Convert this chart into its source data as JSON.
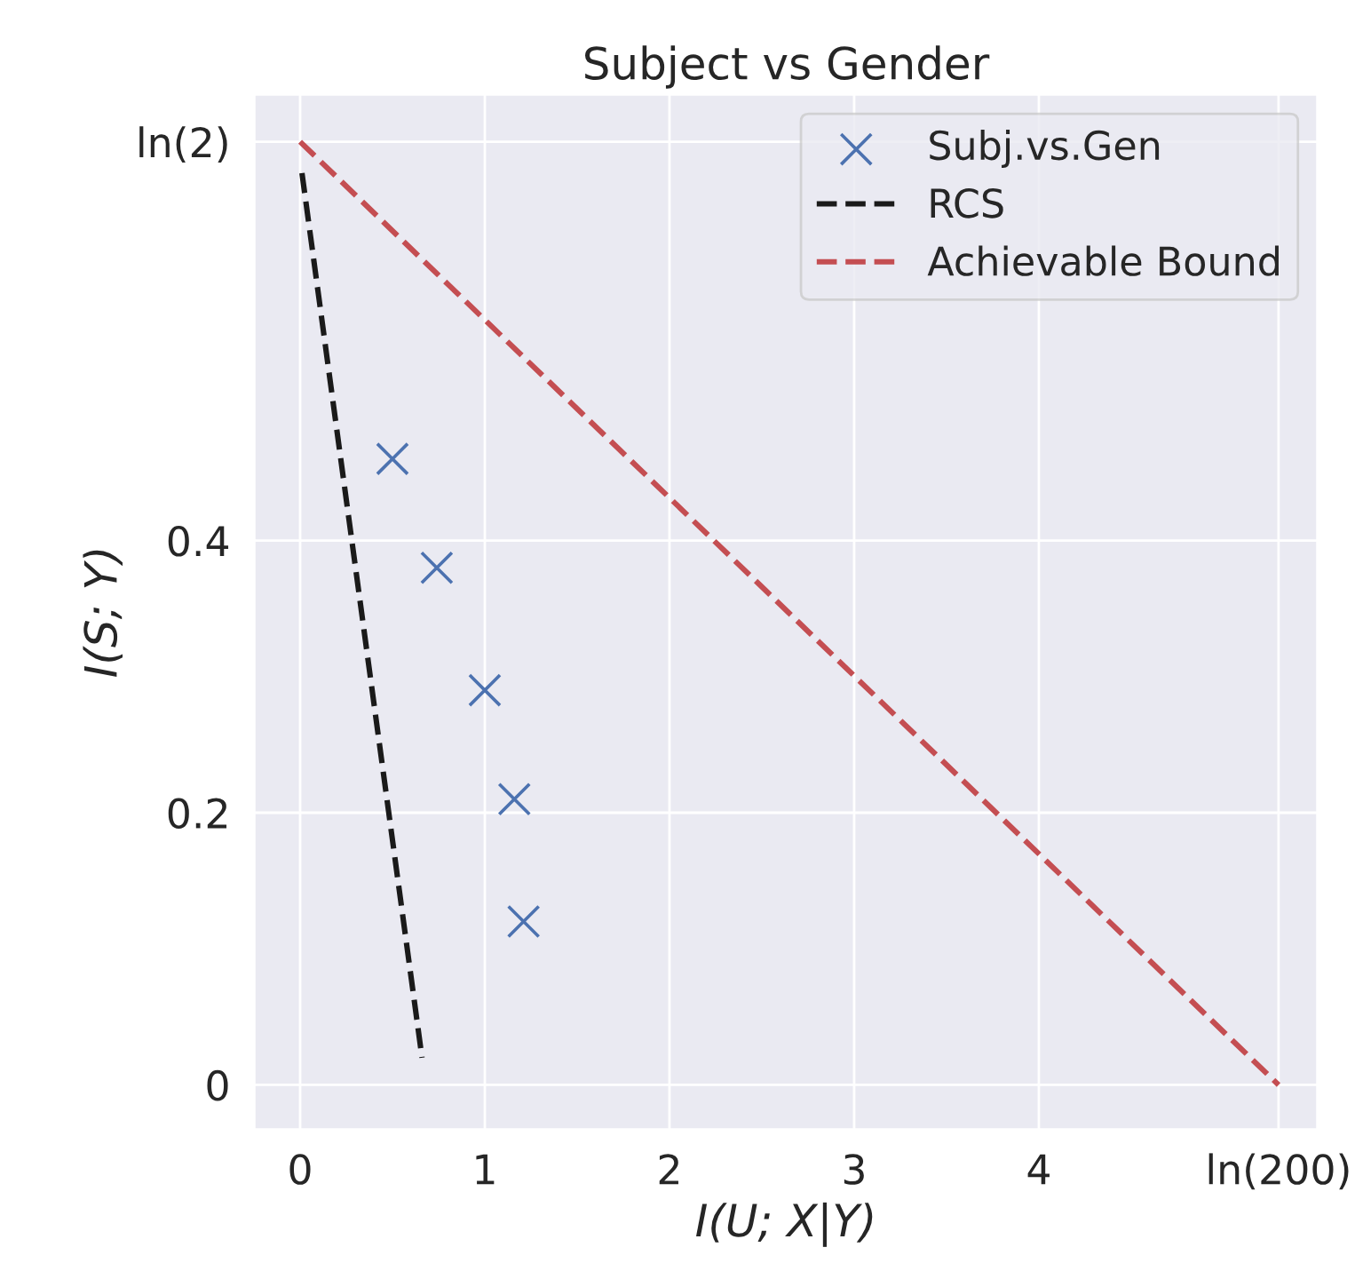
{
  "chart_data": {
    "type": "scatter",
    "title": "Subject vs Gender",
    "xlabel": "I(U; X|Y)",
    "ylabel": "I(S; Y)",
    "series": [
      {
        "name": "Subj.vs.Gen",
        "color": "#4c72b0",
        "marker": "cross",
        "x": [
          0.5,
          0.74,
          1.0,
          1.16,
          1.21
        ],
        "values": [
          0.46,
          0.38,
          0.29,
          0.21,
          0.12
        ]
      },
      {
        "name": "RCS",
        "type": "line",
        "color": "#1a1a1a",
        "line_style": "dashed",
        "marker": "none",
        "x": [
          0.01,
          0.66
        ],
        "values": [
          0.67,
          0.02
        ]
      },
      {
        "name": "Achievable Bound",
        "type": "line",
        "color": "#c44e52",
        "line_style": "dashed",
        "marker": "none",
        "x": [
          0,
          5.298
        ],
        "values": [
          0.693,
          0
        ]
      }
    ],
    "xlim": [
      -0.25,
      5.51
    ],
    "ylim": [
      -0.033,
      0.728
    ],
    "xticks": [
      0,
      1,
      2,
      3,
      4,
      {
        "value": 5.298,
        "label": "ln(200)"
      }
    ],
    "yticks": [
      0,
      0.2,
      0.4,
      {
        "value": 0.693,
        "label": "ln(2)"
      }
    ],
    "grid": true,
    "legend": "top right"
  }
}
